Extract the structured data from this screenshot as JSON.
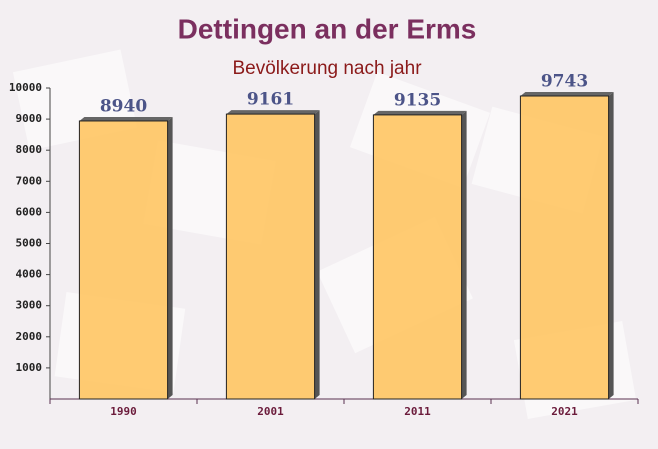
{
  "chart_data": {
    "type": "bar",
    "title": "Dettingen an der Erms",
    "subtitle": "Bevölkerung nach jahr",
    "categories": [
      "1990",
      "2001",
      "2011",
      "2021"
    ],
    "values": [
      8940,
      9161,
      9135,
      9743
    ],
    "color": "#ffc35a",
    "ylim": [
      0,
      10000
    ],
    "yticks": [
      1000,
      2000,
      3000,
      4000,
      5000,
      6000,
      7000,
      8000,
      9000,
      10000
    ],
    "grid": false
  }
}
